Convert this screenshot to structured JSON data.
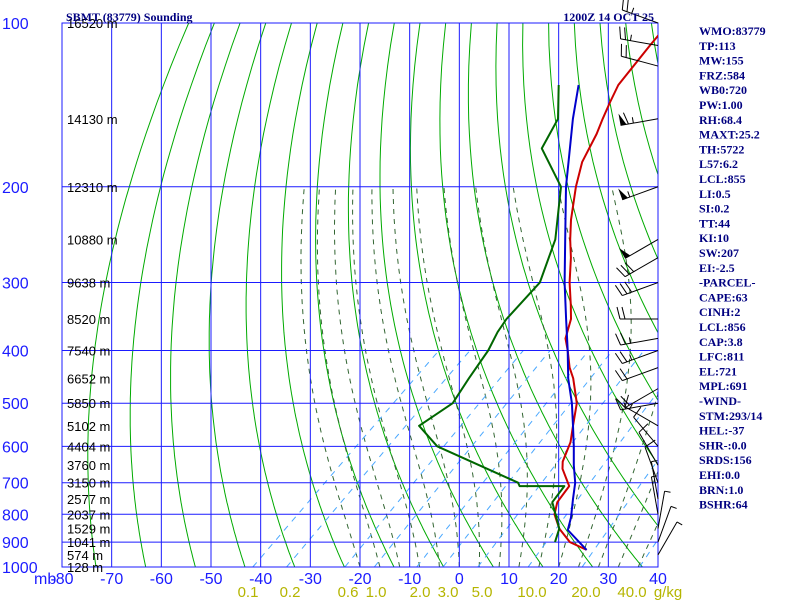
{
  "header": {
    "station_title": "SBMT (83779) Sounding",
    "valid_time": "1200Z 14 OCT 25"
  },
  "axes": {
    "pressure_unit": "mb",
    "mixing_ratio_unit": "g/kg",
    "pressure_levels": [
      100,
      200,
      300,
      400,
      500,
      600,
      700,
      800,
      900,
      1000
    ],
    "temperature_ticks": [
      -80,
      -70,
      -60,
      -50,
      -40,
      -30,
      -20,
      -10,
      0,
      10,
      20,
      30,
      40
    ],
    "mixing_ratio_ticks": [
      "0.1",
      "0.2",
      "0.6",
      "1.0",
      "2.0",
      "3.0",
      "5.0",
      "10.0",
      "20.0",
      "40.0"
    ]
  },
  "altitude_labels": [
    {
      "p": 100,
      "label": "16520 m"
    },
    {
      "p": 150,
      "label": "14130 m"
    },
    {
      "p": 200,
      "label": "12310 m"
    },
    {
      "p": 250,
      "label": "10880 m"
    },
    {
      "p": 300,
      "label": "9638 m"
    },
    {
      "p": 350,
      "label": "8520 m"
    },
    {
      "p": 400,
      "label": "7540 m"
    },
    {
      "p": 450,
      "label": "6652 m"
    },
    {
      "p": 500,
      "label": "5850 m"
    },
    {
      "p": 550,
      "label": "5102 m"
    },
    {
      "p": 600,
      "label": "4404 m"
    },
    {
      "p": 650,
      "label": "3760 m"
    },
    {
      "p": 700,
      "label": "3150 m"
    },
    {
      "p": 750,
      "label": "2577 m"
    },
    {
      "p": 800,
      "label": "2037 m"
    },
    {
      "p": 850,
      "label": "1529 m"
    },
    {
      "p": 900,
      "label": "1041 m"
    },
    {
      "p": 950,
      "label": "574 m"
    },
    {
      "p": 1000,
      "label": "128 m"
    }
  ],
  "indices": [
    "WMO:83779",
    "TP:113",
    "MW:155",
    "FRZ:584",
    "WB0:720",
    "PW:1.00",
    "RH:68.4",
    "MAXT:25.2",
    "TH:5722",
    "L57:6.2",
    "LCL:855",
    "LI:0.5",
    "SI:0.2",
    "TT:44",
    "KI:10",
    "SW:207",
    "EI:-2.5",
    "-PARCEL-",
    "CAPE:63",
    "CINH:2",
    "LCL:856",
    "CAP:3.8",
    "LFC:811",
    "EL:721",
    "MPL:691",
    "-WIND-",
    "STM:293/14",
    "HEL:-37",
    "SHR-:0.0",
    "SRDS:156",
    "EHI:0.0",
    "BRN:1.0",
    "BSHR:64"
  ],
  "colors": {
    "grid": "#1b1bff",
    "dry_adiabat": "#00aa00",
    "moist_adiabat": "#336633",
    "mixing_ratio": "#4aa8ff",
    "temperature": "#cc0000",
    "dewpoint": "#006600",
    "parcel": "#0000cc",
    "index_text": "#000080"
  },
  "chart_data": {
    "type": "line",
    "title": "SBMT (83779) Sounding",
    "xlim": [
      -80,
      40
    ],
    "ylim_mb": [
      1000,
      100
    ],
    "log_pressure": true,
    "skew_deg_per_log": 50,
    "series": [
      {
        "kind": "temperature",
        "points": [
          {
            "p": 930,
            "t": 22
          },
          {
            "p": 900,
            "t": 17
          },
          {
            "p": 850,
            "t": 12
          },
          {
            "p": 800,
            "t": 8
          },
          {
            "p": 760,
            "t": 6
          },
          {
            "p": 710,
            "t": 5
          },
          {
            "p": 660,
            "t": 0
          },
          {
            "p": 640,
            "t": -1.5
          },
          {
            "p": 590,
            "t": -4
          },
          {
            "p": 550,
            "t": -7
          },
          {
            "p": 500,
            "t": -11
          },
          {
            "p": 450,
            "t": -17
          },
          {
            "p": 430,
            "t": -20
          },
          {
            "p": 400,
            "t": -24
          },
          {
            "p": 380,
            "t": -27
          },
          {
            "p": 350,
            "t": -30
          },
          {
            "p": 330,
            "t": -33
          },
          {
            "p": 300,
            "t": -38
          },
          {
            "p": 270,
            "t": -43
          },
          {
            "p": 250,
            "t": -47
          },
          {
            "p": 230,
            "t": -51
          },
          {
            "p": 200,
            "t": -57
          },
          {
            "p": 180,
            "t": -61
          },
          {
            "p": 160,
            "t": -64
          },
          {
            "p": 150,
            "t": -66
          },
          {
            "p": 140,
            "t": -68
          },
          {
            "p": 130,
            "t": -70
          },
          {
            "p": 110,
            "t": -72
          },
          {
            "p": 100,
            "t": -73
          }
        ]
      },
      {
        "kind": "dewpoint",
        "points": [
          {
            "p": 900,
            "t": 14
          },
          {
            "p": 850,
            "t": 12
          },
          {
            "p": 760,
            "t": 5
          },
          {
            "p": 710,
            "t": 4
          },
          {
            "p": 710,
            "t": -5
          },
          {
            "p": 700,
            "t": -6
          },
          {
            "p": 600,
            "t": -30
          },
          {
            "p": 550,
            "t": -38
          },
          {
            "p": 500,
            "t": -36
          },
          {
            "p": 450,
            "t": -38
          },
          {
            "p": 400,
            "t": -40
          },
          {
            "p": 370,
            "t": -42
          },
          {
            "p": 350,
            "t": -43
          },
          {
            "p": 300,
            "t": -44
          },
          {
            "p": 250,
            "t": -50
          },
          {
            "p": 200,
            "t": -60
          },
          {
            "p": 170,
            "t": -72
          },
          {
            "p": 150,
            "t": -75
          },
          {
            "p": 130,
            "t": -82
          }
        ]
      },
      {
        "kind": "parcel",
        "points": [
          {
            "p": 930,
            "t": 22
          },
          {
            "p": 855,
            "t": 14
          },
          {
            "p": 811,
            "t": 12
          },
          {
            "p": 750,
            "t": 8.5
          },
          {
            "p": 700,
            "t": 5.5
          },
          {
            "p": 650,
            "t": 1.5
          },
          {
            "p": 600,
            "t": -2.5
          },
          {
            "p": 550,
            "t": -7
          },
          {
            "p": 500,
            "t": -12
          },
          {
            "p": 450,
            "t": -18
          },
          {
            "p": 400,
            "t": -24
          },
          {
            "p": 350,
            "t": -31
          },
          {
            "p": 300,
            "t": -39
          },
          {
            "p": 250,
            "t": -48
          },
          {
            "p": 200,
            "t": -59
          },
          {
            "p": 150,
            "t": -72
          },
          {
            "p": 130,
            "t": -78
          }
        ]
      }
    ],
    "wind_barbs": [
      {
        "p": 100,
        "dir": 290,
        "spd": 25
      },
      {
        "p": 110,
        "dir": 280,
        "spd": 25
      },
      {
        "p": 120,
        "dir": 285,
        "spd": 20
      },
      {
        "p": 150,
        "dir": 260,
        "spd": 65
      },
      {
        "p": 200,
        "dir": 250,
        "spd": 55
      },
      {
        "p": 250,
        "dir": 240,
        "spd": 50
      },
      {
        "p": 270,
        "dir": 240,
        "spd": 30
      },
      {
        "p": 300,
        "dir": 250,
        "spd": 30
      },
      {
        "p": 350,
        "dir": 270,
        "spd": 20
      },
      {
        "p": 380,
        "dir": 260,
        "spd": 25
      },
      {
        "p": 400,
        "dir": 250,
        "spd": 25
      },
      {
        "p": 430,
        "dir": 250,
        "spd": 20
      },
      {
        "p": 470,
        "dir": 240,
        "spd": 20
      },
      {
        "p": 500,
        "dir": 260,
        "spd": 15
      },
      {
        "p": 550,
        "dir": 300,
        "spd": 15
      },
      {
        "p": 600,
        "dir": 320,
        "spd": 10
      },
      {
        "p": 650,
        "dir": 330,
        "spd": 10
      },
      {
        "p": 700,
        "dir": 340,
        "spd": 10
      },
      {
        "p": 750,
        "dir": 350,
        "spd": 5
      },
      {
        "p": 800,
        "dir": 350,
        "spd": 5
      },
      {
        "p": 850,
        "dir": 10,
        "spd": 5
      },
      {
        "p": 900,
        "dir": 20,
        "spd": 5
      },
      {
        "p": 950,
        "dir": 30,
        "spd": 5
      }
    ]
  }
}
